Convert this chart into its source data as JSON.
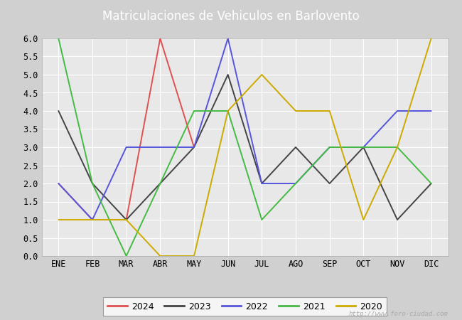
{
  "title": "Matriculaciones de Vehiculos en Barlovento",
  "months": [
    "ENE",
    "FEB",
    "MAR",
    "ABR",
    "MAY",
    "JUN",
    "JUL",
    "AGO",
    "SEP",
    "OCT",
    "NOV",
    "DIC"
  ],
  "series": {
    "2024": {
      "color": "#e05050",
      "values": [
        2,
        1,
        1,
        6,
        3,
        null,
        null,
        null,
        null,
        null,
        null,
        null
      ]
    },
    "2023": {
      "color": "#444444",
      "values": [
        4,
        2,
        1,
        2,
        3,
        5,
        2,
        3,
        2,
        3,
        1,
        2
      ]
    },
    "2022": {
      "color": "#5555dd",
      "values": [
        2,
        1,
        3,
        3,
        3,
        6,
        2,
        2,
        3,
        3,
        4,
        4
      ]
    },
    "2021": {
      "color": "#44bb44",
      "values": [
        6,
        2,
        0,
        2,
        4,
        4,
        1,
        2,
        3,
        3,
        3,
        2
      ]
    },
    "2020": {
      "color": "#ccaa00",
      "values": [
        1,
        1,
        1,
        0,
        0,
        4,
        5,
        4,
        4,
        1,
        3,
        6
      ]
    }
  },
  "ylim": [
    0,
    6.0
  ],
  "yticks": [
    0.0,
    0.5,
    1.0,
    1.5,
    2.0,
    2.5,
    3.0,
    3.5,
    4.0,
    4.5,
    5.0,
    5.5,
    6.0
  ],
  "fig_bg_color": "#d0d0d0",
  "plot_bg_color": "#e8e8e8",
  "title_bg_color": "#5588cc",
  "title_color": "#ffffff",
  "grid_color": "#ffffff",
  "watermark": "http://www.foro-ciudad.com",
  "legend_years": [
    "2024",
    "2023",
    "2022",
    "2021",
    "2020"
  ]
}
